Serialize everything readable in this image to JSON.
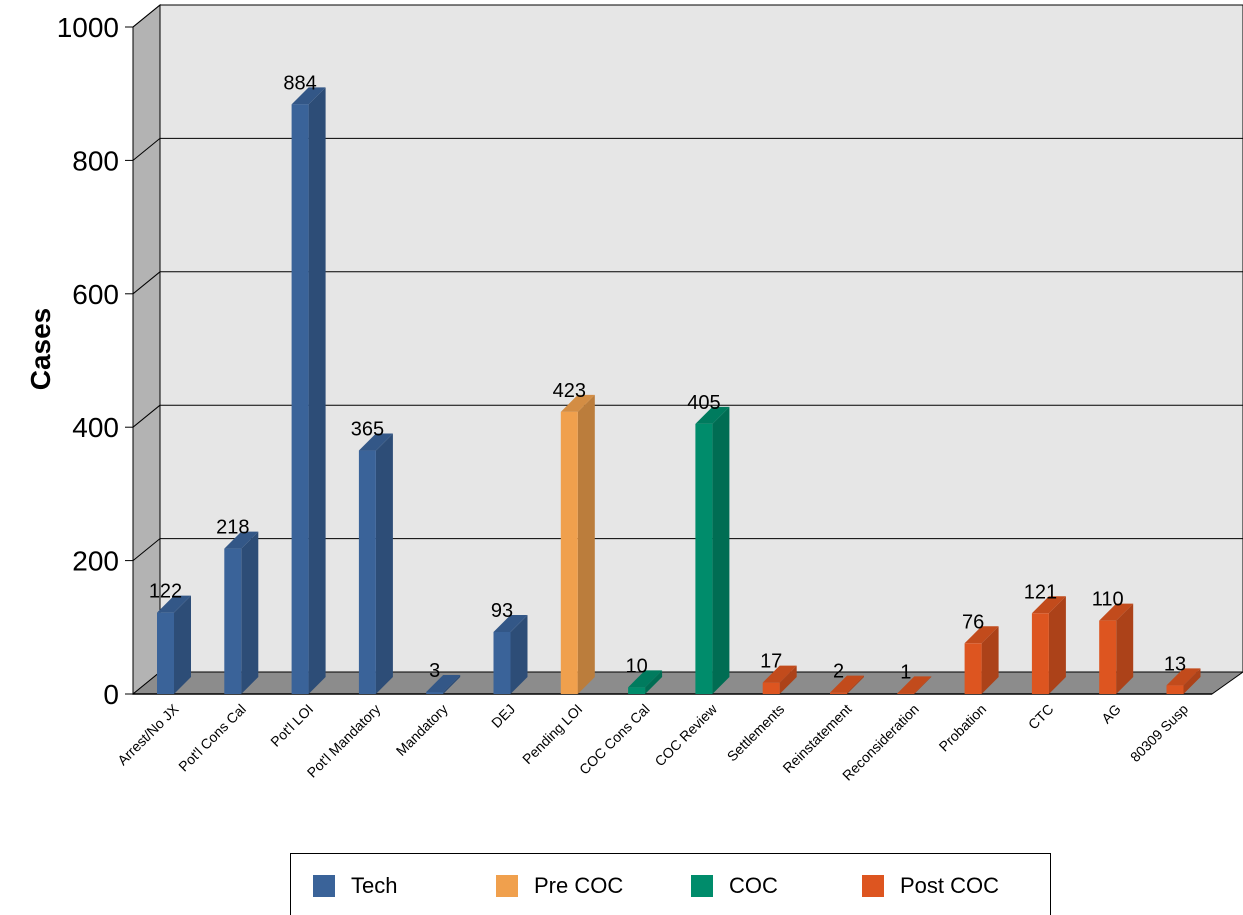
{
  "chart_data": {
    "type": "bar",
    "title": "",
    "xlabel": "",
    "ylabel": "Cases",
    "ylim": [
      0,
      1000
    ],
    "yticks": [
      0,
      200,
      400,
      600,
      800,
      1000
    ],
    "grid": true,
    "legend_position": "bottom",
    "categories": [
      "Arrest/No JX",
      "Pot'l Cons Cal",
      "Pot'l LOI",
      "Pot'l Mandatory",
      "Mandatory",
      "DEJ",
      "Pending LOI",
      "COC Cons Cal",
      "COC Review",
      "Settlements",
      "Reinstatement",
      "Reconsideration",
      "Probation",
      "CTC",
      "AG",
      "80309 Susp"
    ],
    "values": [
      122,
      218,
      884,
      365,
      3,
      93,
      423,
      10,
      405,
      17,
      2,
      1,
      76,
      121,
      110,
      13
    ],
    "groups": [
      "Tech",
      "Tech",
      "Tech",
      "Tech",
      "Tech",
      "Tech",
      "Pre COC",
      "COC",
      "COC",
      "Post COC",
      "Post COC",
      "Post COC",
      "Post COC",
      "Post COC",
      "Post COC",
      "Post COC"
    ],
    "series": [
      {
        "name": "Tech",
        "color": "#3A6399"
      },
      {
        "name": "Pre COC",
        "color": "#F0A04D"
      },
      {
        "name": "COC",
        "color": "#008C6B"
      },
      {
        "name": "Post COC",
        "color": "#DD5520"
      }
    ]
  },
  "legend": {
    "items": [
      "Tech",
      "Pre COC",
      "COC",
      "Post COC"
    ]
  }
}
